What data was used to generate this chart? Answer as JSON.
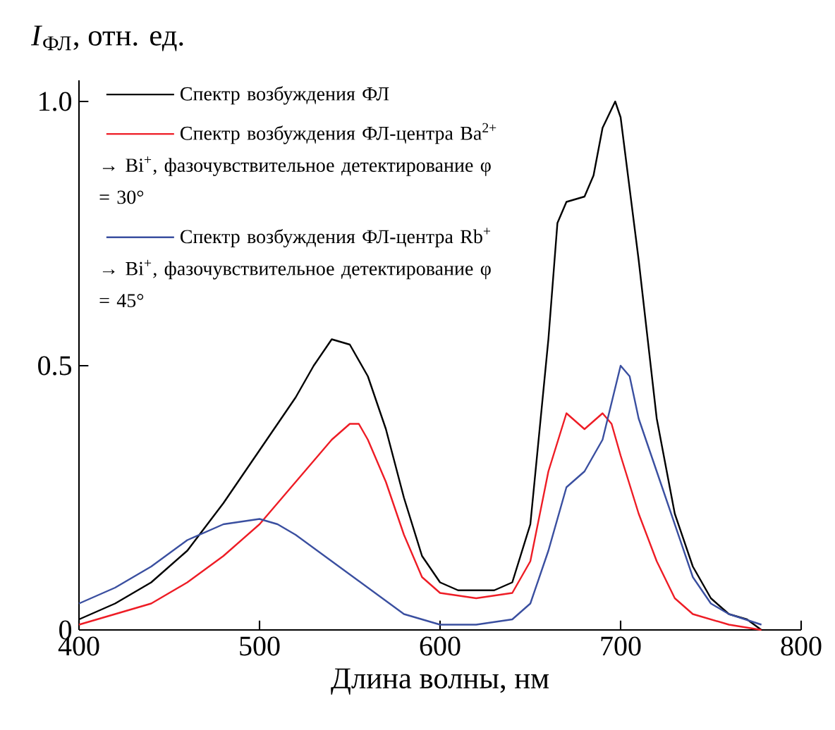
{
  "chart_data": {
    "type": "line",
    "xlabel": "Длина волны, нм",
    "ylabel": "*I*$_{ФЛ}$, отн. ед.",
    "xlim": [
      400,
      800
    ],
    "ylim": [
      0,
      1.04
    ],
    "xticks": [
      400,
      500,
      600,
      700,
      800
    ],
    "yticks": [
      0,
      0.5,
      {
        "value": 1,
        "label": "1.0"
      }
    ],
    "grid": false,
    "legend": "top left",
    "marker": "none",
    "line_style": "solid",
    "series": [
      {
        "name": "Спектр возбуждения ФЛ",
        "color": "#000000",
        "x": [
          400,
          420,
          440,
          460,
          480,
          500,
          520,
          530,
          540,
          550,
          560,
          570,
          580,
          590,
          600,
          610,
          620,
          630,
          640,
          650,
          660,
          665,
          670,
          680,
          685,
          690,
          697,
          700,
          710,
          720,
          730,
          740,
          750,
          760,
          770,
          778
        ],
        "values": [
          0.02,
          0.05,
          0.09,
          0.15,
          0.24,
          0.34,
          0.44,
          0.5,
          0.55,
          0.54,
          0.48,
          0.38,
          0.25,
          0.14,
          0.09,
          0.075,
          0.075,
          0.075,
          0.09,
          0.2,
          0.55,
          0.77,
          0.81,
          0.82,
          0.86,
          0.95,
          1.0,
          0.97,
          0.7,
          0.4,
          0.22,
          0.12,
          0.06,
          0.03,
          0.02,
          0.0
        ]
      },
      {
        "name": "Спектр возбуждения ФЛ-центра Ba$^{2+}$ → Bi$^{+}$, фазочувствительное детектирование φ = 30°",
        "color": "#ee1c25",
        "x": [
          400,
          420,
          440,
          460,
          480,
          500,
          520,
          540,
          550,
          555,
          560,
          570,
          580,
          590,
          600,
          620,
          640,
          650,
          660,
          670,
          680,
          690,
          695,
          700,
          710,
          720,
          730,
          740,
          760,
          778
        ],
        "values": [
          0.01,
          0.03,
          0.05,
          0.09,
          0.14,
          0.2,
          0.28,
          0.36,
          0.39,
          0.39,
          0.36,
          0.28,
          0.18,
          0.1,
          0.07,
          0.06,
          0.07,
          0.13,
          0.3,
          0.41,
          0.38,
          0.41,
          0.39,
          0.33,
          0.22,
          0.13,
          0.06,
          0.03,
          0.01,
          0.0
        ]
      },
      {
        "name": "Спектр возбуждения ФЛ-центра Rb$^{+}$ → Bi$^{+}$, фазочувствительное детектирование φ = 45°",
        "color": "#3a4fa0",
        "x": [
          400,
          420,
          440,
          460,
          480,
          500,
          510,
          520,
          540,
          560,
          580,
          600,
          620,
          640,
          650,
          660,
          670,
          680,
          690,
          700,
          705,
          710,
          720,
          730,
          740,
          750,
          760,
          778
        ],
        "values": [
          0.05,
          0.08,
          0.12,
          0.17,
          0.2,
          0.21,
          0.2,
          0.18,
          0.13,
          0.08,
          0.03,
          0.01,
          0.01,
          0.02,
          0.05,
          0.15,
          0.27,
          0.3,
          0.36,
          0.5,
          0.48,
          0.4,
          0.3,
          0.2,
          0.1,
          0.05,
          0.03,
          0.01
        ]
      }
    ]
  }
}
